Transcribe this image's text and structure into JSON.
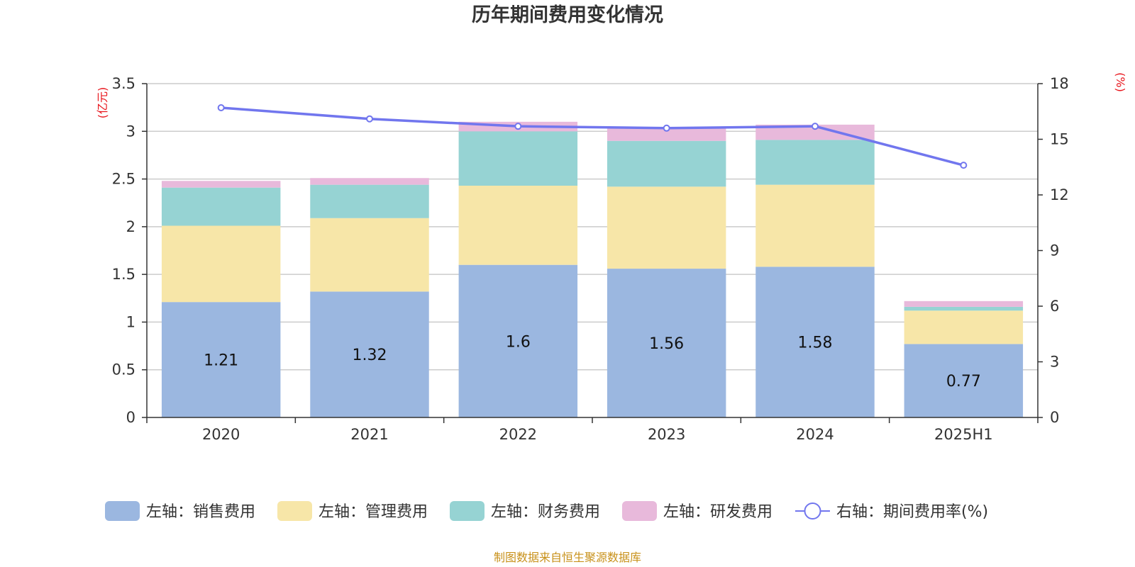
{
  "chart_data": {
    "type": "bar",
    "title": "历年期间费用变化情况",
    "categories": [
      "2020",
      "2021",
      "2022",
      "2023",
      "2024",
      "2025H1"
    ],
    "left_axis": {
      "unit": "(亿元)",
      "range": [
        0,
        3.5
      ],
      "ticks": [
        "0",
        "0.5",
        "1",
        "1.5",
        "2",
        "2.5",
        "3",
        "3.5"
      ]
    },
    "right_axis": {
      "unit": "(%)",
      "range": [
        0,
        18
      ],
      "ticks": [
        "0",
        "3",
        "6",
        "9",
        "12",
        "15",
        "18"
      ]
    },
    "stacked": true,
    "grid": true,
    "legend_position": "bottom",
    "series": [
      {
        "name": "左轴：销售费用",
        "type": "bar",
        "axis": "left",
        "color": "#9bb7e0",
        "values": [
          1.21,
          1.32,
          1.6,
          1.56,
          1.58,
          0.77
        ],
        "labels_shown": true
      },
      {
        "name": "左轴：管理费用",
        "type": "bar",
        "axis": "left",
        "color": "#f7e6a8",
        "values": [
          0.8,
          0.77,
          0.83,
          0.86,
          0.86,
          0.35
        ]
      },
      {
        "name": "左轴：财务费用",
        "type": "bar",
        "axis": "left",
        "color": "#96d3d3",
        "values": [
          0.4,
          0.35,
          0.57,
          0.48,
          0.47,
          0.04
        ]
      },
      {
        "name": "左轴：研发费用",
        "type": "bar",
        "axis": "left",
        "color": "#e8b9db",
        "values": [
          0.07,
          0.07,
          0.1,
          0.13,
          0.16,
          0.06
        ]
      },
      {
        "name": "右轴：期间费用率(%)",
        "type": "line",
        "axis": "right",
        "color": "#7176ee",
        "values": [
          16.7,
          16.1,
          15.7,
          15.6,
          15.7,
          13.6
        ]
      }
    ],
    "source": "制图数据来自恒生聚源数据库"
  }
}
